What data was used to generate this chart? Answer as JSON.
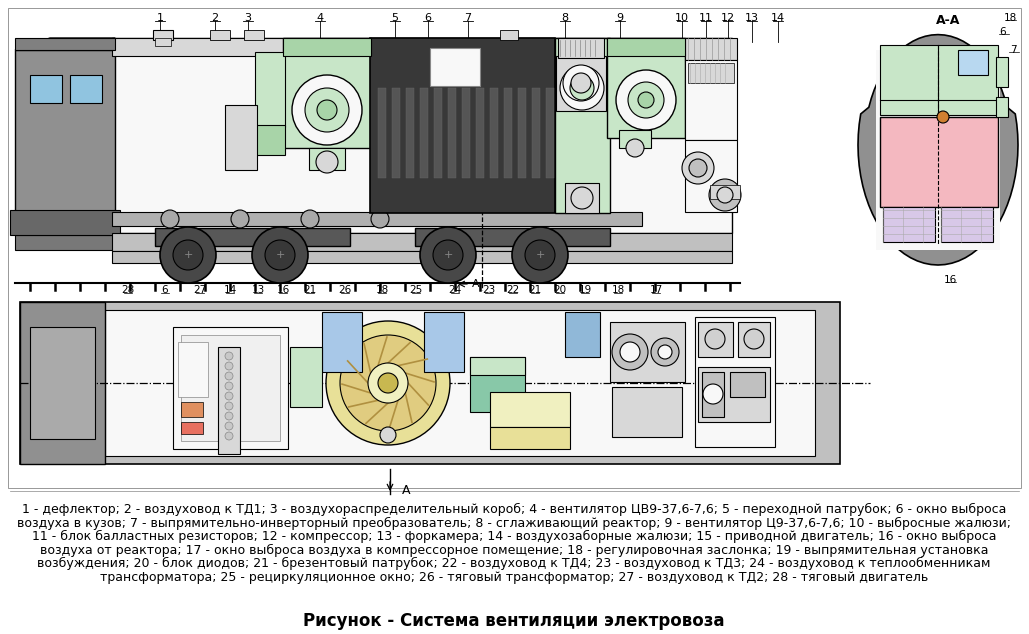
{
  "title": "Рисунок - Система вентиляции электровоза",
  "title_fontsize": 12,
  "background_color": "#ffffff",
  "description_lines": [
    "1 - дефлектор; 2 - воздуховод к ТД1; 3 - воздухораспределительный короб; 4 - вентилятор ЦВ9-37,6-7,6; 5 - переходной патрубок; 6 - окно выброса",
    "воздуха в кузов; 7 - выпрямительно-инверторный преобразователь; 8 - сглаживающий реактор; 9 - вентилятор Ц9-37,6-7,6; 10 - выбросные жалюзи;",
    "11 - блок балластных резисторов; 12 - компрессор; 13 - форкамера; 14 - воздухозаборные жалюзи; 15 - приводной двигатель; 16 - окно выброса",
    "воздуха от реактора; 17 - окно выброса воздуха в компрессорное помещение; 18 - регулировочная заслонка; 19 - выпрямительная установка",
    "возбуждения; 20 - блок диодов; 21 - брезентовый патрубок; 22 - воздуховод к ТД4; 23 - воздуховод к ТД3; 24 - воздуховод к теплообменникам",
    "трансформатора; 25 - рециркуляционное окно; 26 - тяговый трансформатор; 27 - воздуховод к ТД2; 28 - тяговый двигатель"
  ],
  "desc_fontsize": 9.0,
  "lc": "#000000",
  "light_green": "#c8e6c8",
  "med_green": "#a8d4a8",
  "cab_gray": "#909090",
  "body_gray": "#c0c0c0",
  "light_gray2": "#d8d8d8",
  "dark_box": "#383838",
  "pink": "#f4b8c0",
  "light_pink": "#f8d0d8",
  "light_blue": "#a8c8e8",
  "light_blue2": "#b8d8f0",
  "yellow_light": "#f0f0c0",
  "yellow_med": "#e8e098",
  "orange_sm": "#d08030",
  "tan": "#d4b896",
  "lavender": "#d8c8e8",
  "white_ish": "#f8f8f8",
  "green_sm": "#88cc88",
  "teal_sm": "#88c8a8"
}
